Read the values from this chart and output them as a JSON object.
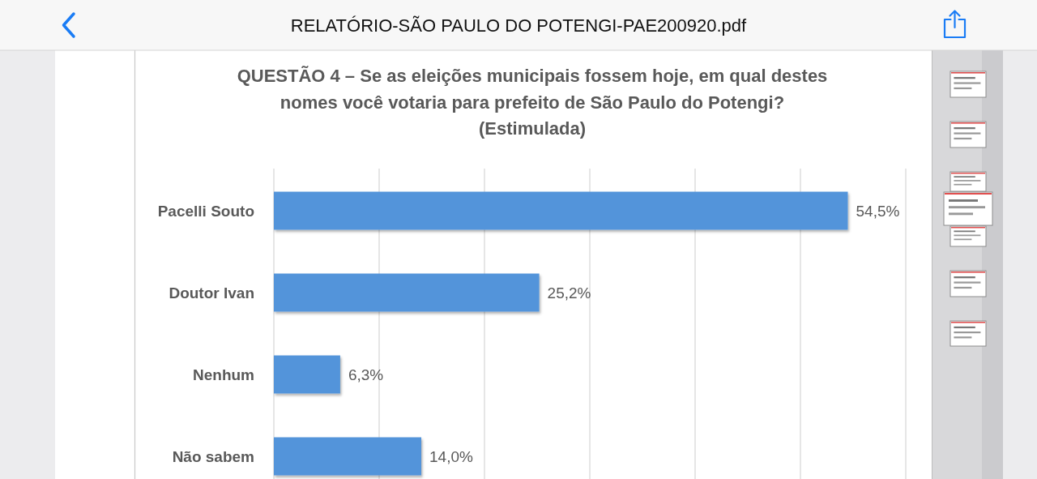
{
  "chart_data": {
    "type": "bar",
    "orientation": "horizontal",
    "title": "QUESTÃO 4 – Se as eleições municipais fossem hoje, em qual destes nomes você votaria para prefeito de São Paulo do Potengi? (Estimulada)",
    "annotations": [
      "RELATÓRIO-SÃO PAULO DO POTENGI-PAE200920.pdf"
    ],
    "categories": [
      "Pacelli Souto",
      "Doutor Ivan",
      "Nenhum",
      "Não sabem"
    ],
    "values": [
      54.5,
      25.2,
      6.3,
      14.0
    ],
    "value_labels": [
      "54,5%",
      "25,2%",
      "6,3%",
      "14,0%"
    ],
    "color": "#5294da",
    "xlim": [
      0,
      60
    ],
    "xticks": [
      {
        "value": 0,
        "label": null
      },
      {
        "value": 10,
        "label": null
      },
      {
        "value": 20,
        "label": null
      },
      {
        "value": 30,
        "label": null
      },
      {
        "value": 40,
        "label": null
      },
      {
        "value": 50,
        "label": null
      },
      {
        "value": 60,
        "label": null
      }
    ],
    "tick_labels": "y",
    "grid": "x"
  }
}
